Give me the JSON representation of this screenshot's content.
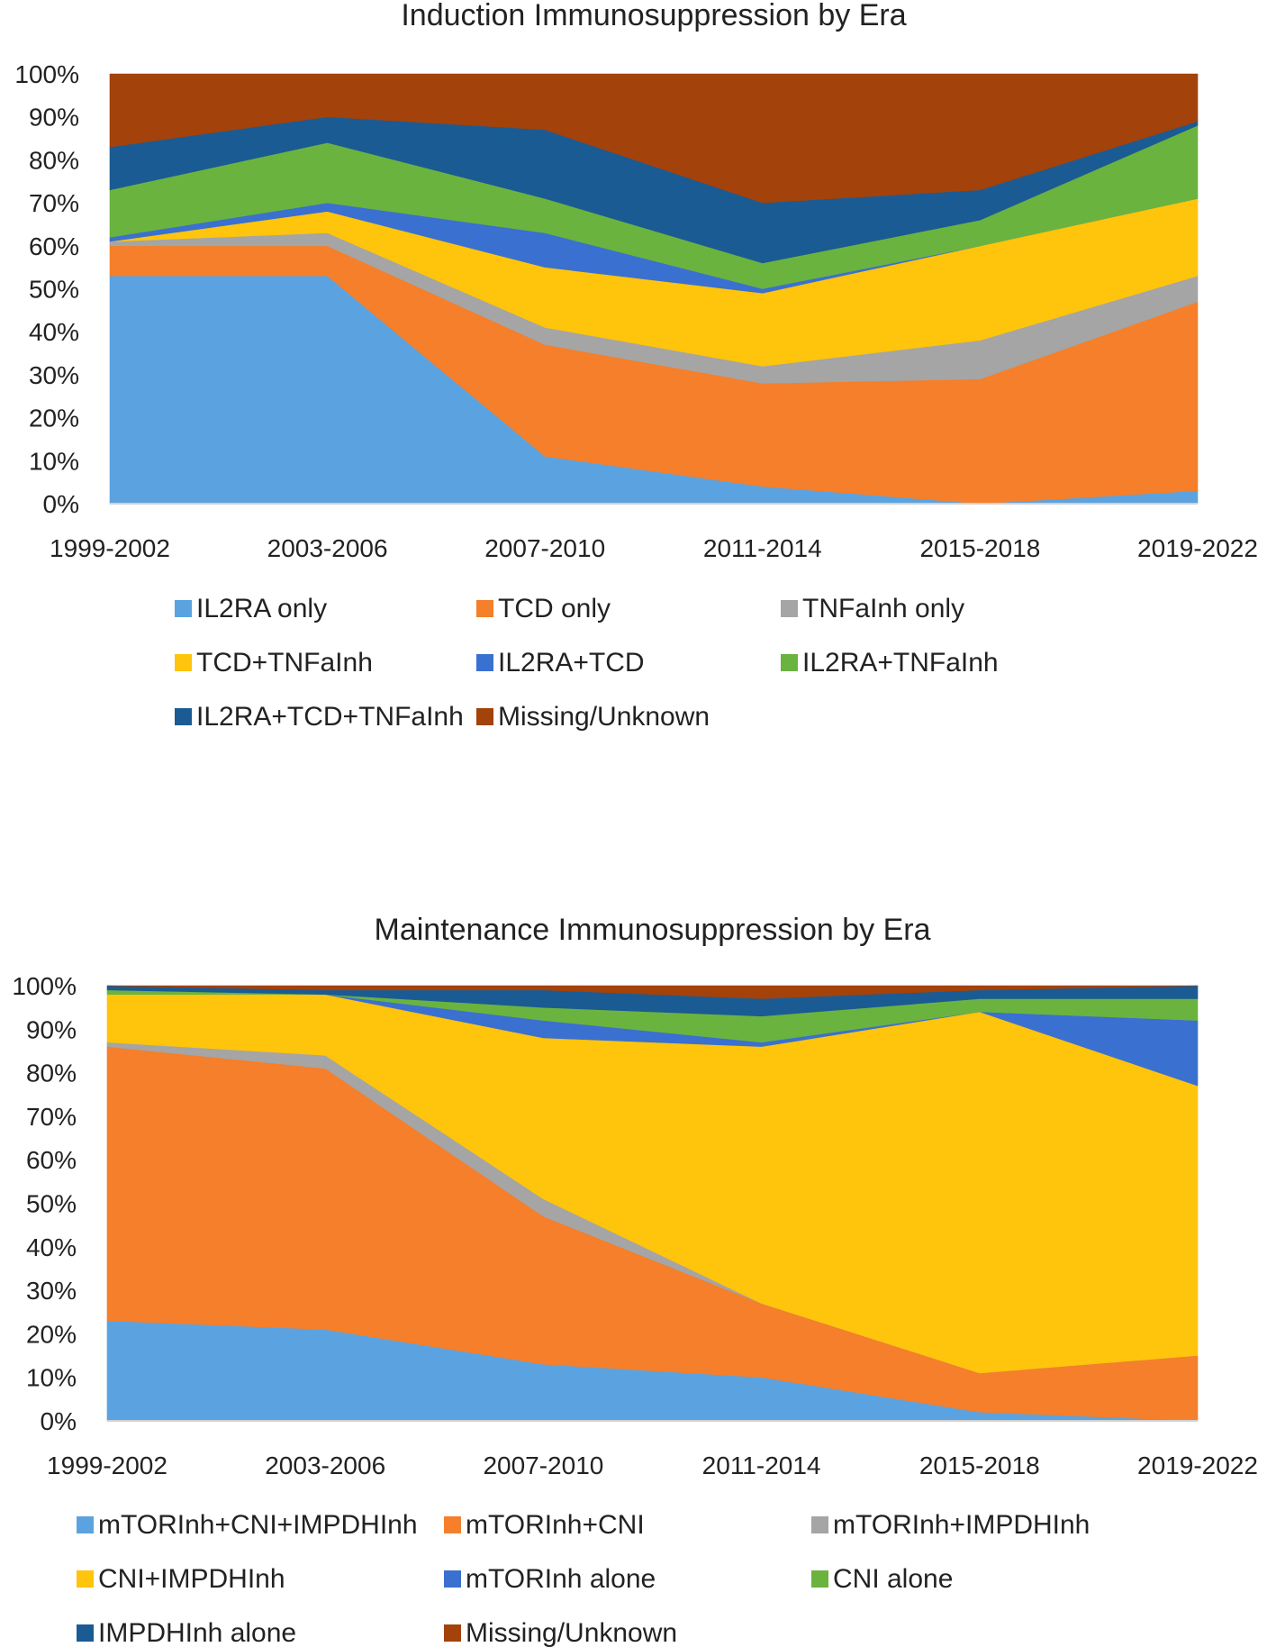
{
  "chart_data": [
    {
      "type": "area",
      "stacked": true,
      "title": "Induction Immunosuppression by Era",
      "xlabel": "",
      "ylabel": "",
      "categories": [
        "1999-2002",
        "2003-2006",
        "2007-2010",
        "2011-2014",
        "2015-2018",
        "2019-2022"
      ],
      "ylim": [
        0,
        100
      ],
      "yticks": [
        "0%",
        "10%",
        "20%",
        "30%",
        "40%",
        "50%",
        "60%",
        "70%",
        "80%",
        "90%",
        "100%"
      ],
      "legend_position": "bottom",
      "series": [
        {
          "name": "IL2RA only",
          "color": "#5ba3e0",
          "values": [
            53,
            53,
            11,
            4,
            0,
            3
          ]
        },
        {
          "name": "TCD only",
          "color": "#f57f2a",
          "values": [
            7,
            7,
            26,
            24,
            29,
            44
          ]
        },
        {
          "name": "TNFaInh only",
          "color": "#a5a5a5",
          "values": [
            1,
            3,
            4,
            4,
            9,
            6
          ]
        },
        {
          "name": "TCD+TNFaInh",
          "color": "#ffc40c",
          "values": [
            0,
            5,
            14,
            17,
            22,
            18
          ]
        },
        {
          "name": "IL2RA+TCD",
          "color": "#3a70d0",
          "values": [
            1,
            2,
            8,
            1,
            0,
            0
          ]
        },
        {
          "name": "IL2RA+TNFaInh",
          "color": "#6bb33f",
          "values": [
            11,
            14,
            8,
            6,
            6,
            17
          ]
        },
        {
          "name": "IL2RA+TCD+TNFaInh",
          "color": "#1b5b93",
          "values": [
            10,
            6,
            16,
            14,
            7,
            1
          ]
        },
        {
          "name": "Missing/Unknown",
          "color": "#a3420a",
          "values": [
            17,
            10,
            13,
            30,
            27,
            11
          ]
        }
      ]
    },
    {
      "type": "area",
      "stacked": true,
      "title": "Maintenance Immunosuppression by Era",
      "xlabel": "",
      "ylabel": "",
      "categories": [
        "1999-2002",
        "2003-2006",
        "2007-2010",
        "2011-2014",
        "2015-2018",
        "2019-2022"
      ],
      "ylim": [
        0,
        100
      ],
      "yticks": [
        "0%",
        "10%",
        "20%",
        "30%",
        "40%",
        "50%",
        "60%",
        "70%",
        "80%",
        "90%",
        "100%"
      ],
      "legend_position": "bottom",
      "series": [
        {
          "name": "mTORInh+CNI+IMPDHInh",
          "color": "#5ba3e0",
          "values": [
            23,
            21,
            13,
            10,
            2,
            0
          ]
        },
        {
          "name": "mTORInh+CNI",
          "color": "#f57f2a",
          "values": [
            63,
            60,
            34,
            17,
            9,
            15
          ]
        },
        {
          "name": "mTORInh+IMPDHInh",
          "color": "#a5a5a5",
          "values": [
            1,
            3,
            4,
            0,
            0,
            0
          ]
        },
        {
          "name": "CNI+IMPDHInh",
          "color": "#ffc40c",
          "values": [
            11,
            14,
            37,
            59,
            83,
            62
          ]
        },
        {
          "name": "mTORInh alone",
          "color": "#3a70d0",
          "values": [
            0,
            0,
            4,
            1,
            0,
            15
          ]
        },
        {
          "name": "CNI alone",
          "color": "#6bb33f",
          "values": [
            1,
            0,
            3,
            6,
            3,
            5
          ]
        },
        {
          "name": "IMPDHInh alone",
          "color": "#1b5b93",
          "values": [
            1,
            1,
            4,
            4,
            2,
            3
          ]
        },
        {
          "name": "Missing/Unknown",
          "color": "#a3420a",
          "values": [
            0,
            1,
            1,
            3,
            1,
            0
          ]
        }
      ]
    }
  ]
}
